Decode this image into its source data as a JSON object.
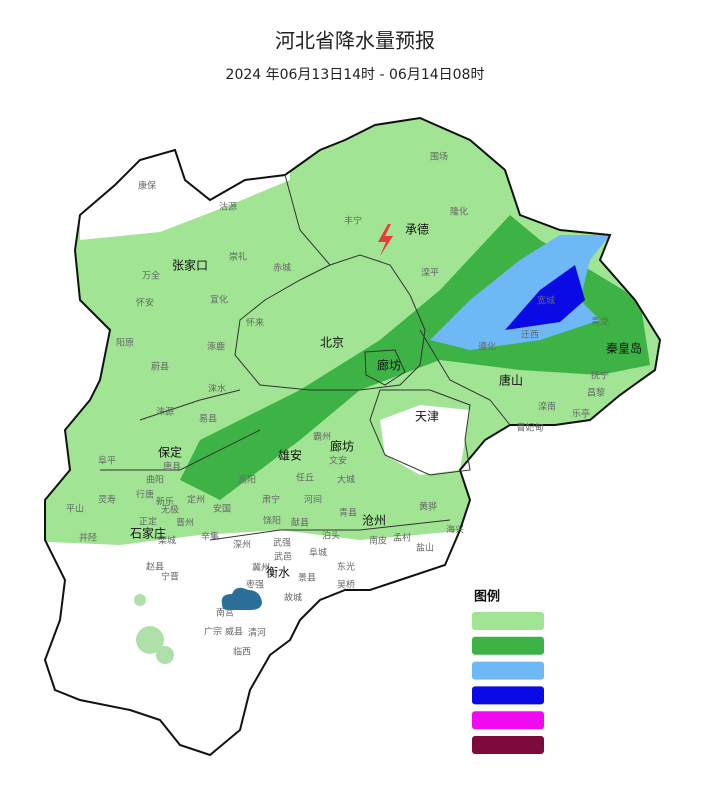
{
  "header": {
    "title": "河北省降水量预报",
    "subtitle": "2024 年06月13日14时 - 06月14日08时"
  },
  "cities": [
    "承德",
    "张家口",
    "北京",
    "廊坊",
    "天津",
    "唐山",
    "秦皇岛",
    "保定",
    "雄安",
    "廊坊",
    "沧州",
    "石家庄",
    "衡水"
  ],
  "counties": [
    "围场",
    "康保",
    "沽源",
    "丰宁",
    "隆化",
    "崇礼",
    "万全",
    "赤城",
    "滦平",
    "怀安",
    "宣化",
    "怀来",
    "阳原",
    "涿鹿",
    "蔚县",
    "宽城",
    "青龙",
    "遵化",
    "迁西",
    "抚宁",
    "昌黎",
    "乐亭",
    "滦南",
    "曹妃甸",
    "涞水",
    "易县",
    "涞源",
    "阜平",
    "唐县",
    "曲阳",
    "定州",
    "安国",
    "高阳",
    "任丘",
    "河间",
    "大城",
    "文安",
    "霸州",
    "青县",
    "黄骅",
    "海兴",
    "盐山",
    "孟村",
    "南皮",
    "泊头",
    "献县",
    "肃宁",
    "饶阳",
    "深州",
    "武强",
    "武邑",
    "阜城",
    "景县",
    "东光",
    "吴桥",
    "故城",
    "枣强",
    "冀州",
    "辛集",
    "晋州",
    "无极",
    "新乐",
    "行唐",
    "灵寿",
    "平山",
    "正定",
    "井陉",
    "栾城",
    "赵县",
    "宁晋",
    "清河",
    "广宗",
    "威县",
    "临西",
    "南宫"
  ],
  "legend": {
    "title": "图例",
    "colors": [
      "#a0e494",
      "#3db346",
      "#6fb8f6",
      "#0a0ae6",
      "#f00af0",
      "#7c0a3a"
    ]
  }
}
